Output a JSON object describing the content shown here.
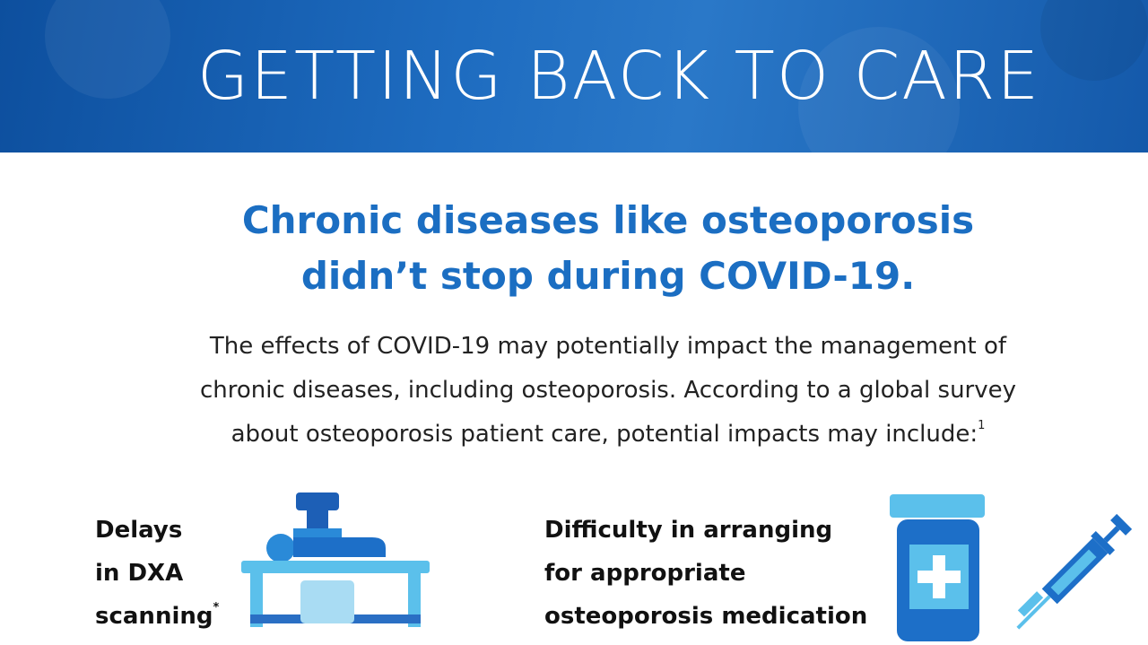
{
  "header": {
    "title": "GETTING BACK TO CARE"
  },
  "heading": {
    "lines": [
      "Chronic diseases like osteoporosis",
      "didn’t stop during COVID-19."
    ]
  },
  "intro": {
    "lines": [
      "The effects of COVID-19 may potentially impact the management of",
      "chronic diseases, including osteoporosis. According to a global survey",
      "about osteoporosis patient care, potential impacts may include:"
    ],
    "footnote": "1"
  },
  "items": [
    {
      "lines": [
        "Delays",
        "in DXA",
        "scanning"
      ],
      "footnote": "*"
    },
    {
      "lines": [
        "Difficulty in arranging",
        "for appropriate",
        "osteoporosis medication"
      ]
    }
  ]
}
